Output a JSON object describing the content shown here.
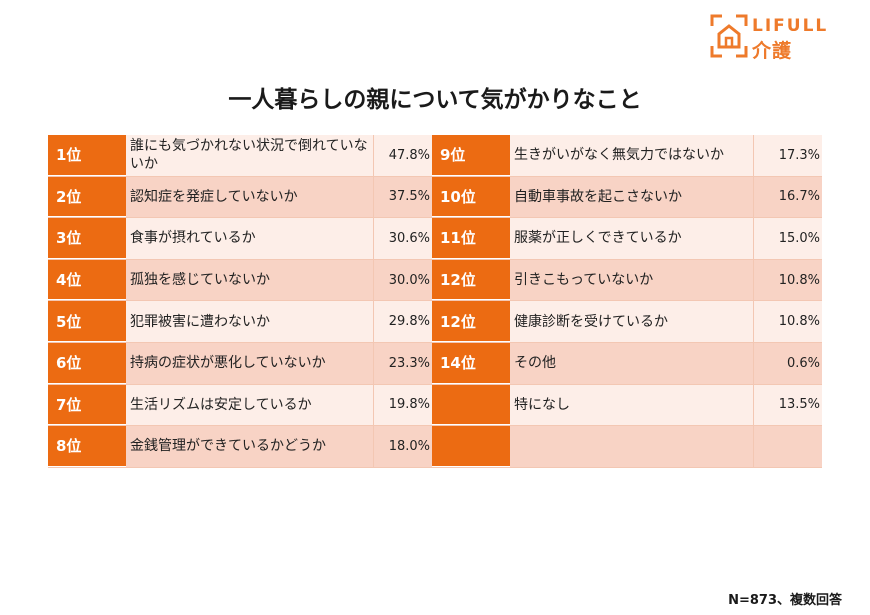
{
  "logo": {
    "brand": "LIFULL",
    "sub": "介護"
  },
  "title": "一人暮らしの親について気がかりなこと",
  "left_rows": [
    {
      "rank": "1位",
      "label": "誰にも気づかれない状況で倒れていないか",
      "value": "47.8%"
    },
    {
      "rank": "2位",
      "label": "認知症を発症していないか",
      "value": "37.5%"
    },
    {
      "rank": "3位",
      "label": "食事が摂れているか",
      "value": "30.6%"
    },
    {
      "rank": "4位",
      "label": "孤独を感じていないか",
      "value": "30.0%"
    },
    {
      "rank": "5位",
      "label": "犯罪被害に遭わないか",
      "value": "29.8%"
    },
    {
      "rank": "6位",
      "label": "持病の症状が悪化していないか",
      "value": "23.3%"
    },
    {
      "rank": "7位",
      "label": "生活リズムは安定しているか",
      "value": "19.8%"
    },
    {
      "rank": "8位",
      "label": "金銭管理ができているかどうか",
      "value": "18.0%"
    }
  ],
  "right_rows": [
    {
      "rank": "9位",
      "label": "生きがいがなく無気力ではないか",
      "value": "17.3%"
    },
    {
      "rank": "10位",
      "label": "自動車事故を起こさないか",
      "value": "16.7%"
    },
    {
      "rank": "11位",
      "label": "服薬が正しくできているか",
      "value": "15.0%"
    },
    {
      "rank": "12位",
      "label": "引きこもっていないか",
      "value": "10.8%"
    },
    {
      "rank": "12位",
      "label": "健康診断を受けているか",
      "value": "10.8%"
    },
    {
      "rank": "14位",
      "label": "その他",
      "value": "0.6%"
    },
    {
      "rank": "",
      "label": "特になし",
      "value": "13.5%"
    },
    {
      "rank": "",
      "label": "",
      "value": ""
    }
  ],
  "footnote": "N=873、複数回答",
  "colors": {
    "accent": "#ec6b12",
    "row_light": "#fdeee8",
    "row_dark": "#f8d3c5"
  }
}
